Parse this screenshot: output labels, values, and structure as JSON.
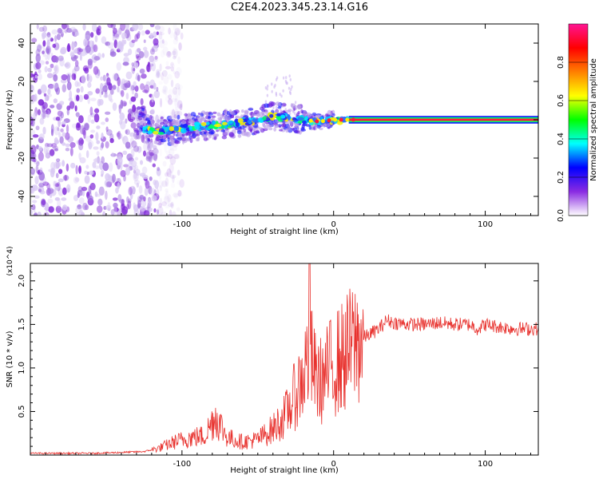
{
  "title": "C2E4.2023.345.23.14.G16",
  "chart_data": [
    {
      "type": "heatmap",
      "xlabel": "Height of straight line (km)",
      "ylabel": "Frequency (Hz)",
      "xlim": [
        -200,
        135
      ],
      "ylim": [
        -50,
        50
      ],
      "x_ticks": [
        -100,
        0,
        100
      ],
      "y_ticks": [
        -40,
        -20,
        0,
        20,
        40
      ],
      "colorbar": {
        "label": "Normalized spectral amplitude",
        "range": [
          0,
          1
        ],
        "ticks": [
          "0.0",
          "0.2",
          "0.4",
          "0.6",
          "0.8"
        ],
        "colors": [
          "#ffffff",
          "#8a2be2",
          "#0000ff",
          "#00ffff",
          "#00ff00",
          "#ffff00",
          "#ff7f00",
          "#ff0000",
          "#ff1493"
        ]
      },
      "ridge": [
        {
          "x": -125,
          "y": -5
        },
        {
          "x": -110,
          "y": -6
        },
        {
          "x": -95,
          "y": -4
        },
        {
          "x": -80,
          "y": -3
        },
        {
          "x": -65,
          "y": -2
        },
        {
          "x": -50,
          "y": 0
        },
        {
          "x": -40,
          "y": 2
        },
        {
          "x": -30,
          "y": 1
        },
        {
          "x": -20,
          "y": 0
        },
        {
          "x": -10,
          "y": -1
        },
        {
          "x": 0,
          "y": 0
        },
        {
          "x": 10,
          "y": 0
        },
        {
          "x": 135,
          "y": 0
        }
      ],
      "noise_region": {
        "x": [
          -200,
          -115
        ]
      }
    },
    {
      "type": "line",
      "xlabel": "Height of straight line (km)",
      "ylabel": "SNR (10 * v/v)",
      "y_multiplier": "(x10^4)",
      "xlim": [
        -200,
        135
      ],
      "ylim": [
        0,
        2.2
      ],
      "x_ticks": [
        -100,
        0,
        100
      ],
      "y_ticks": [
        "0.5",
        "1.0",
        "1.5",
        "2.0"
      ],
      "color": "#e8312d",
      "series": [
        {
          "x": [
            -200,
            -180,
            -160,
            -140,
            -125,
            -115,
            -105,
            -95,
            -85,
            -78,
            -70,
            -60,
            -50,
            -40,
            -32,
            -25,
            -20,
            -16,
            -12,
            -8,
            -4,
            0,
            5,
            10,
            15,
            20,
            25,
            30,
            35,
            40,
            50,
            60,
            70,
            80,
            90,
            95,
            100,
            110,
            120,
            135
          ],
          "values": [
            0.02,
            0.02,
            0.02,
            0.03,
            0.04,
            0.08,
            0.15,
            0.2,
            0.22,
            0.45,
            0.2,
            0.15,
            0.18,
            0.3,
            0.45,
            0.7,
            0.9,
            1.2,
            0.9,
            0.85,
            0.95,
            1.05,
            1.1,
            1.2,
            1.3,
            1.35,
            1.4,
            1.45,
            1.55,
            1.52,
            1.5,
            1.5,
            1.52,
            1.5,
            1.5,
            1.45,
            1.5,
            1.47,
            1.45,
            1.45
          ]
        }
      ]
    }
  ]
}
